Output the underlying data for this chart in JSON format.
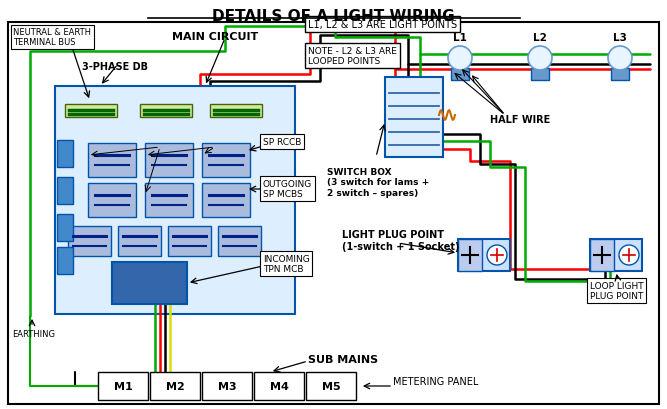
{
  "title": "DETAILS OF A LIGHT WIRING",
  "bg_color": "#ffffff",
  "fig_w": 6.67,
  "fig_h": 4.1,
  "labels": {
    "l1_l2_l3_box": "L1, L2 & L3 ARE LIGHT POINTS",
    "note_box": "NOTE - L2 & L3 ARE\nLOOPED POINTS",
    "neutral_earth": "NEUTRAL & EARTH\nTERMINAL BUS",
    "main_circuit": "MAIN CIRCUIT",
    "three_phase": "3-PHASE DB",
    "sp_rccb": "SP RCCB",
    "outgoing_sp": "OUTGOING\nSP MCBS",
    "incoming_tpn": "INCOMING\nTPN MCB",
    "switch_box": "SWITCH BOX\n(3 switch for lams +\n2 switch – spares)",
    "half_wire": "HALF WIRE",
    "light_plug": "LIGHT PLUG POINT\n(1-switch + 1 Socket)",
    "loop_light": "LOOP LIGHT\nPLUG POINT",
    "sub_mains": "SUB MAINS",
    "metering_panel": "METERING PANEL",
    "earthing": "EARTHING",
    "L1": "L1",
    "L2": "L2",
    "L3": "L3",
    "M1": "M1",
    "M2": "M2",
    "M3": "M3",
    "M4": "M4",
    "M5": "M5"
  },
  "colors": {
    "red_wire": "#ff0000",
    "black_wire": "#000000",
    "green_wire": "#00aa00",
    "blue_wire": "#0000cc",
    "yellow_wire": "#dddd00",
    "db_fill": "#4488cc",
    "db_border": "#0055aa",
    "box_fill": "#ddeeff",
    "mcb_fill": "#aabbdd",
    "tpn_fill": "#3366aa",
    "plug_fill": "#cce0ff",
    "bulb_base": "#6699cc",
    "bulb_glass": "#e8f4ff"
  }
}
